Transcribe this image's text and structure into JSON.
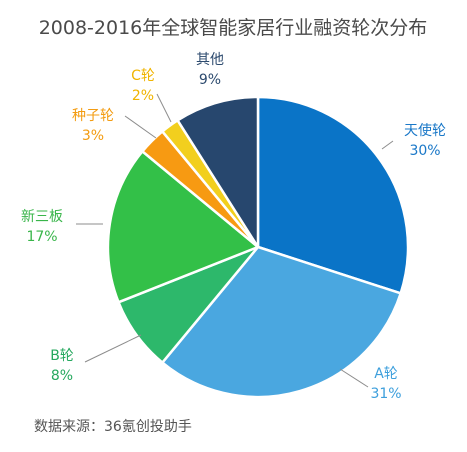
{
  "chart_data": {
    "type": "pie",
    "title": "2008-2016年全球智能家居行业融资轮次分布",
    "slices": [
      {
        "name": "天使轮",
        "value": 30,
        "value_label": "30%",
        "color": "#0a74c7",
        "label_color": "#1a78c8"
      },
      {
        "name": "A轮",
        "value": 31,
        "value_label": "31%",
        "color": "#4aa7e0",
        "label_color": "#3d9fdc"
      },
      {
        "name": "B轮",
        "value": 8,
        "value_label": "8%",
        "color": "#2db86b",
        "label_color": "#25a85e"
      },
      {
        "name": "新三板",
        "value": 17,
        "value_label": "17%",
        "color": "#33c048",
        "label_color": "#39b54a"
      },
      {
        "name": "种子轮",
        "value": 3,
        "value_label": "3%",
        "color": "#f79a12",
        "label_color": "#f39c12"
      },
      {
        "name": "C轮",
        "value": 2,
        "value_label": "2%",
        "color": "#f2cf1e",
        "label_color": "#f0b400"
      },
      {
        "name": "其他",
        "value": 9,
        "value_label": "9%",
        "color": "#27476e",
        "label_color": "#2c4a6e"
      }
    ],
    "start": "12 o'clock",
    "direction": "clockwise",
    "legend": "none"
  },
  "source": "数据来源：36氪创投助手"
}
